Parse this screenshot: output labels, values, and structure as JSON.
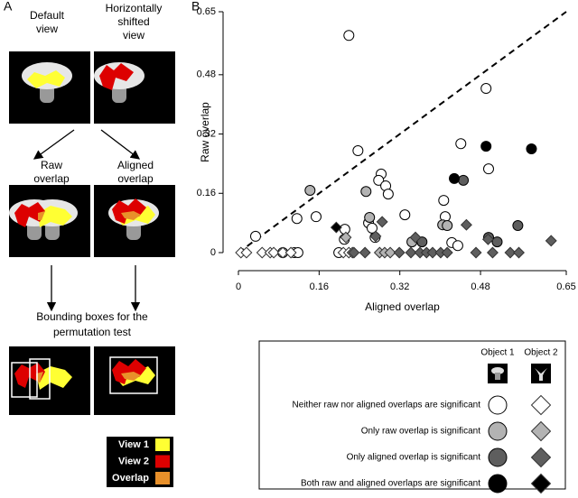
{
  "panel_a": {
    "label": "A",
    "default_view": [
      "Default",
      "view"
    ],
    "shifted_view": [
      "Horizontally",
      "shifted",
      "view"
    ],
    "raw_overlap": [
      "Raw",
      "overlap"
    ],
    "aligned_overlap": [
      "Aligned",
      "overlap"
    ],
    "bounding_boxes": [
      "Bounding boxes for the",
      "permutation test"
    ],
    "legend": [
      {
        "label": "View 1",
        "color": "#ffff33"
      },
      {
        "label": "View 2",
        "color": "#dd0000"
      },
      {
        "label": "Overlap",
        "color": "#e8902a"
      }
    ]
  },
  "chart_data": {
    "type": "scatter",
    "panel": "B",
    "x_label": "Aligned overlap",
    "y_label": "Raw overlap",
    "xlim": [
      0,
      0.65
    ],
    "ylim": [
      0,
      0.65
    ],
    "xticks": [
      0,
      0.16,
      0.32,
      0.48,
      0.65
    ],
    "yticks": [
      0,
      0.16,
      0.32,
      0.48,
      0.65
    ],
    "identity_line": true,
    "series": [
      {
        "marker": "circle",
        "color": "#ffffff",
        "x": [
          0.219,
          0.491,
          0.441,
          0.496,
          0.237,
          0.283,
          0.278,
          0.292,
          0.297,
          0.154,
          0.116,
          0.211,
          0.21,
          0.034,
          0.258,
          0.265,
          0.33,
          0.407,
          0.41,
          0.423,
          0.435,
          0.271,
          0.111,
          0.118,
          0.088,
          0.199
        ],
        "values": [
          0.586,
          0.443,
          0.294,
          0.226,
          0.275,
          0.212,
          0.195,
          0.18,
          0.158,
          0.097,
          0.092,
          0.063,
          0.036,
          0.044,
          0.08,
          0.066,
          0.102,
          0.141,
          0.097,
          0.027,
          0.019,
          0.041,
          0,
          0,
          0,
          0
        ]
      },
      {
        "marker": "circle",
        "color": "#b3b3b3",
        "x": [
          0.142,
          0.253,
          0.26,
          0.344,
          0.405,
          0.414
        ],
        "values": [
          0.168,
          0.165,
          0.095,
          0.029,
          0.075,
          0.073
        ]
      },
      {
        "marker": "circle",
        "color": "#5e5e5e",
        "x": [
          0.446,
          0.554,
          0.496,
          0.513,
          0.364
        ],
        "values": [
          0.195,
          0.073,
          0.041,
          0.029,
          0.029
        ]
      },
      {
        "marker": "circle",
        "color": "#000000",
        "x": [
          0.491,
          0.581,
          0.428
        ],
        "values": [
          0.287,
          0.28,
          0.2
        ]
      },
      {
        "marker": "diamond",
        "color": "#ffffff",
        "x": [
          0.005,
          0.016,
          0.047,
          0.063,
          0.07,
          0.088,
          0.104,
          0.208,
          0.219,
          0.226
        ],
        "values": [
          0,
          0,
          0,
          0,
          0,
          0,
          0,
          0,
          0,
          0
        ]
      },
      {
        "marker": "diamond",
        "color": "#b3b3b3",
        "x": [
          0.213,
          0.28,
          0.29,
          0.301
        ],
        "values": [
          0.041,
          0,
          0,
          0
        ]
      },
      {
        "marker": "diamond",
        "color": "#5e5e5e",
        "x": [
          0.285,
          0.272,
          0.342,
          0.36,
          0.373,
          0.385,
          0.401,
          0.414,
          0.471,
          0.504,
          0.539,
          0.556,
          0.62,
          0.452,
          0.495,
          0.251,
          0.229,
          0.319,
          0.351
        ],
        "values": [
          0.083,
          0.044,
          0,
          0,
          0,
          0,
          0,
          0,
          0,
          0,
          0,
          0,
          0.032,
          0.075,
          0.036,
          0,
          0,
          0,
          0.041
        ]
      },
      {
        "marker": "diamond",
        "color": "#000000",
        "x": [
          0.194
        ],
        "values": [
          0.068
        ]
      }
    ],
    "legend": {
      "columns": [
        "Object 1",
        "Object 2"
      ],
      "rows": [
        "Neither raw nor aligned overlaps are significant",
        "Only raw overlap is significant",
        "Only aligned overlap is significant",
        "Both raw and aligned overlaps are significant"
      ]
    }
  }
}
